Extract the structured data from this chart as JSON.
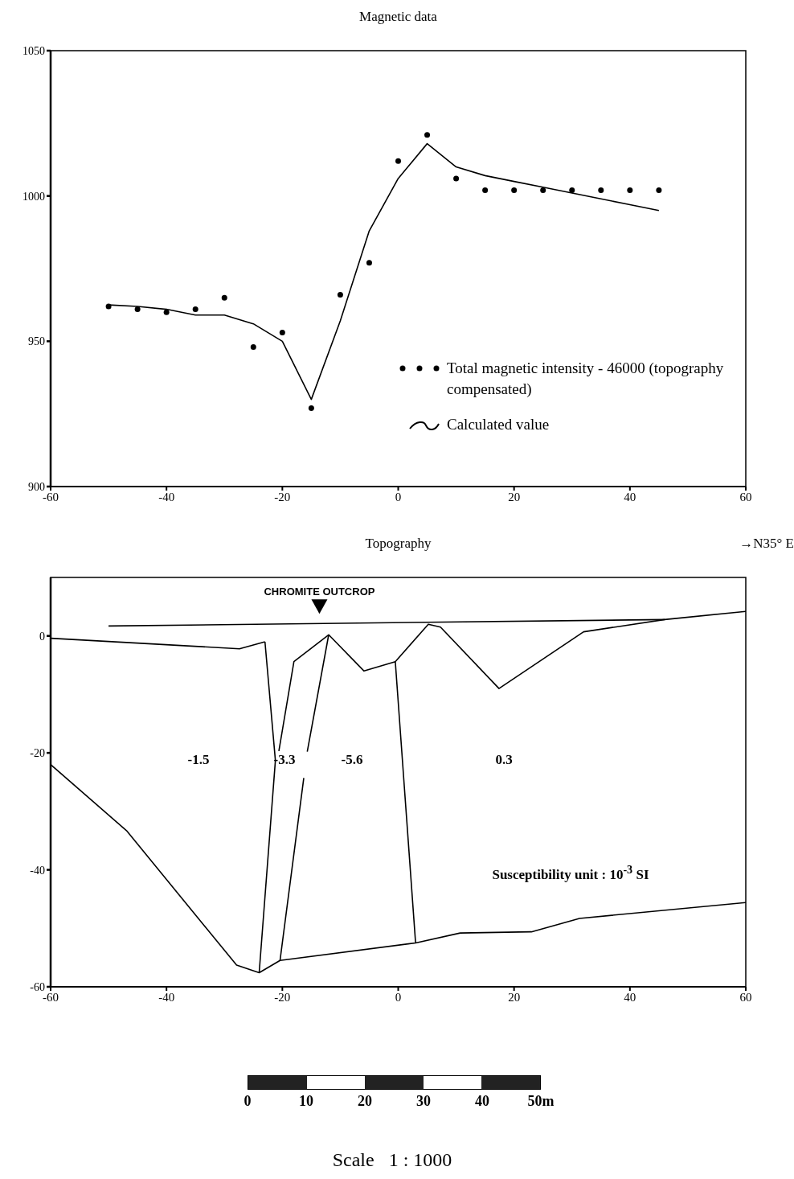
{
  "chart_data": [
    {
      "type": "scatter",
      "title": "Magnetic data",
      "xlim": [
        -60,
        60
      ],
      "xticks": [
        -60,
        -40,
        -20,
        0,
        20,
        40,
        60
      ],
      "ylim": [
        900,
        1050
      ],
      "yticks": [
        900,
        950,
        1000,
        1050
      ],
      "grid": false,
      "legend": "bottom right",
      "x": [
        -50,
        -45,
        -40,
        -35,
        -30,
        -25,
        -20,
        -15,
        -10,
        -5,
        0,
        5,
        10,
        15,
        20,
        25,
        30,
        35,
        40,
        45
      ],
      "series": [
        {
          "name": "Total magnetic intensity - 46000 (topography compensated)",
          "color": "#000000",
          "marker": "circle",
          "values": [
            962,
            961,
            960,
            961,
            965,
            948,
            953,
            927,
            966,
            977,
            1012,
            1021,
            1006,
            1002,
            1002,
            1002,
            1002,
            1002,
            1002,
            1002
          ]
        },
        {
          "type": "line",
          "name": "Calculated value",
          "color": "#000000",
          "marker": "none",
          "values": [
            962.5,
            962,
            961,
            959,
            959,
            956,
            950,
            930,
            957,
            988,
            1006,
            1018,
            1010,
            1007,
            1005,
            1003,
            1001,
            999,
            997,
            995
          ]
        }
      ]
    },
    {
      "type": "line",
      "title": "Topography",
      "xlim": [
        -60,
        60
      ],
      "xticks": [
        -60,
        -40,
        -20,
        0,
        20,
        40,
        60
      ],
      "ylim": [
        -60,
        10
      ],
      "yticks": [
        -60,
        -40,
        -20,
        0
      ],
      "grid": false,
      "legend": false,
      "series": [
        {
          "color": "#000000",
          "x": [
            -50,
            46
          ],
          "values": [
            1.7,
            2.8
          ]
        },
        {
          "color": "#000000",
          "x": [
            -60,
            -27.4,
            -23
          ],
          "values": [
            -0.4,
            -2.2,
            -1
          ]
        },
        {
          "color": "#000000",
          "x": [
            -23,
            -21.2,
            -24
          ],
          "values": [
            -1,
            -21.3,
            -57.6
          ]
        },
        {
          "color": "#000000",
          "x": [
            -20.6,
            -18,
            -12,
            -5.9,
            -0.5,
            3
          ],
          "values": [
            -19.7,
            -4.4,
            0.2,
            -6,
            -4.4,
            -52.5
          ]
        },
        {
          "color": "#000000",
          "x": [
            -12,
            -15.7,
            -16,
            -16.3,
            -20.4
          ],
          "values": [
            0.2,
            -19.8,
            null,
            -24.3,
            -55.5
          ]
        },
        {
          "color": "#000000",
          "x": [
            -0.5,
            5.2,
            7.3,
            17.4,
            32,
            46,
            60
          ],
          "values": [
            -4.4,
            2,
            1.5,
            -9,
            0.7,
            2.8,
            4.2
          ]
        },
        {
          "color": "#000000",
          "x": [
            -60,
            -46.9,
            -27.9,
            -24,
            -20.4,
            3,
            10.7,
            23,
            31.3,
            60
          ],
          "values": [
            -22,
            -33.3,
            -56.3,
            -57.6,
            -55.5,
            -52.5,
            -50.8,
            -50.6,
            -48.3,
            -45.6
          ]
        },
        {
          "type": "scatter",
          "name": "CHROMITE OUTCROP",
          "color": "#000000",
          "marker": "triangle",
          "x": [
            -13.6
          ],
          "values": [
            5
          ]
        }
      ],
      "annotations": [
        "→N35° E",
        "-1.5",
        "-3.3",
        "-5.6",
        "0.3",
        "Susceptibility unit : 10$^{-3}$ SI",
        "0",
        "10",
        "20",
        "30",
        "40",
        "50m",
        "Scale   1 : 1000"
      ]
    }
  ]
}
